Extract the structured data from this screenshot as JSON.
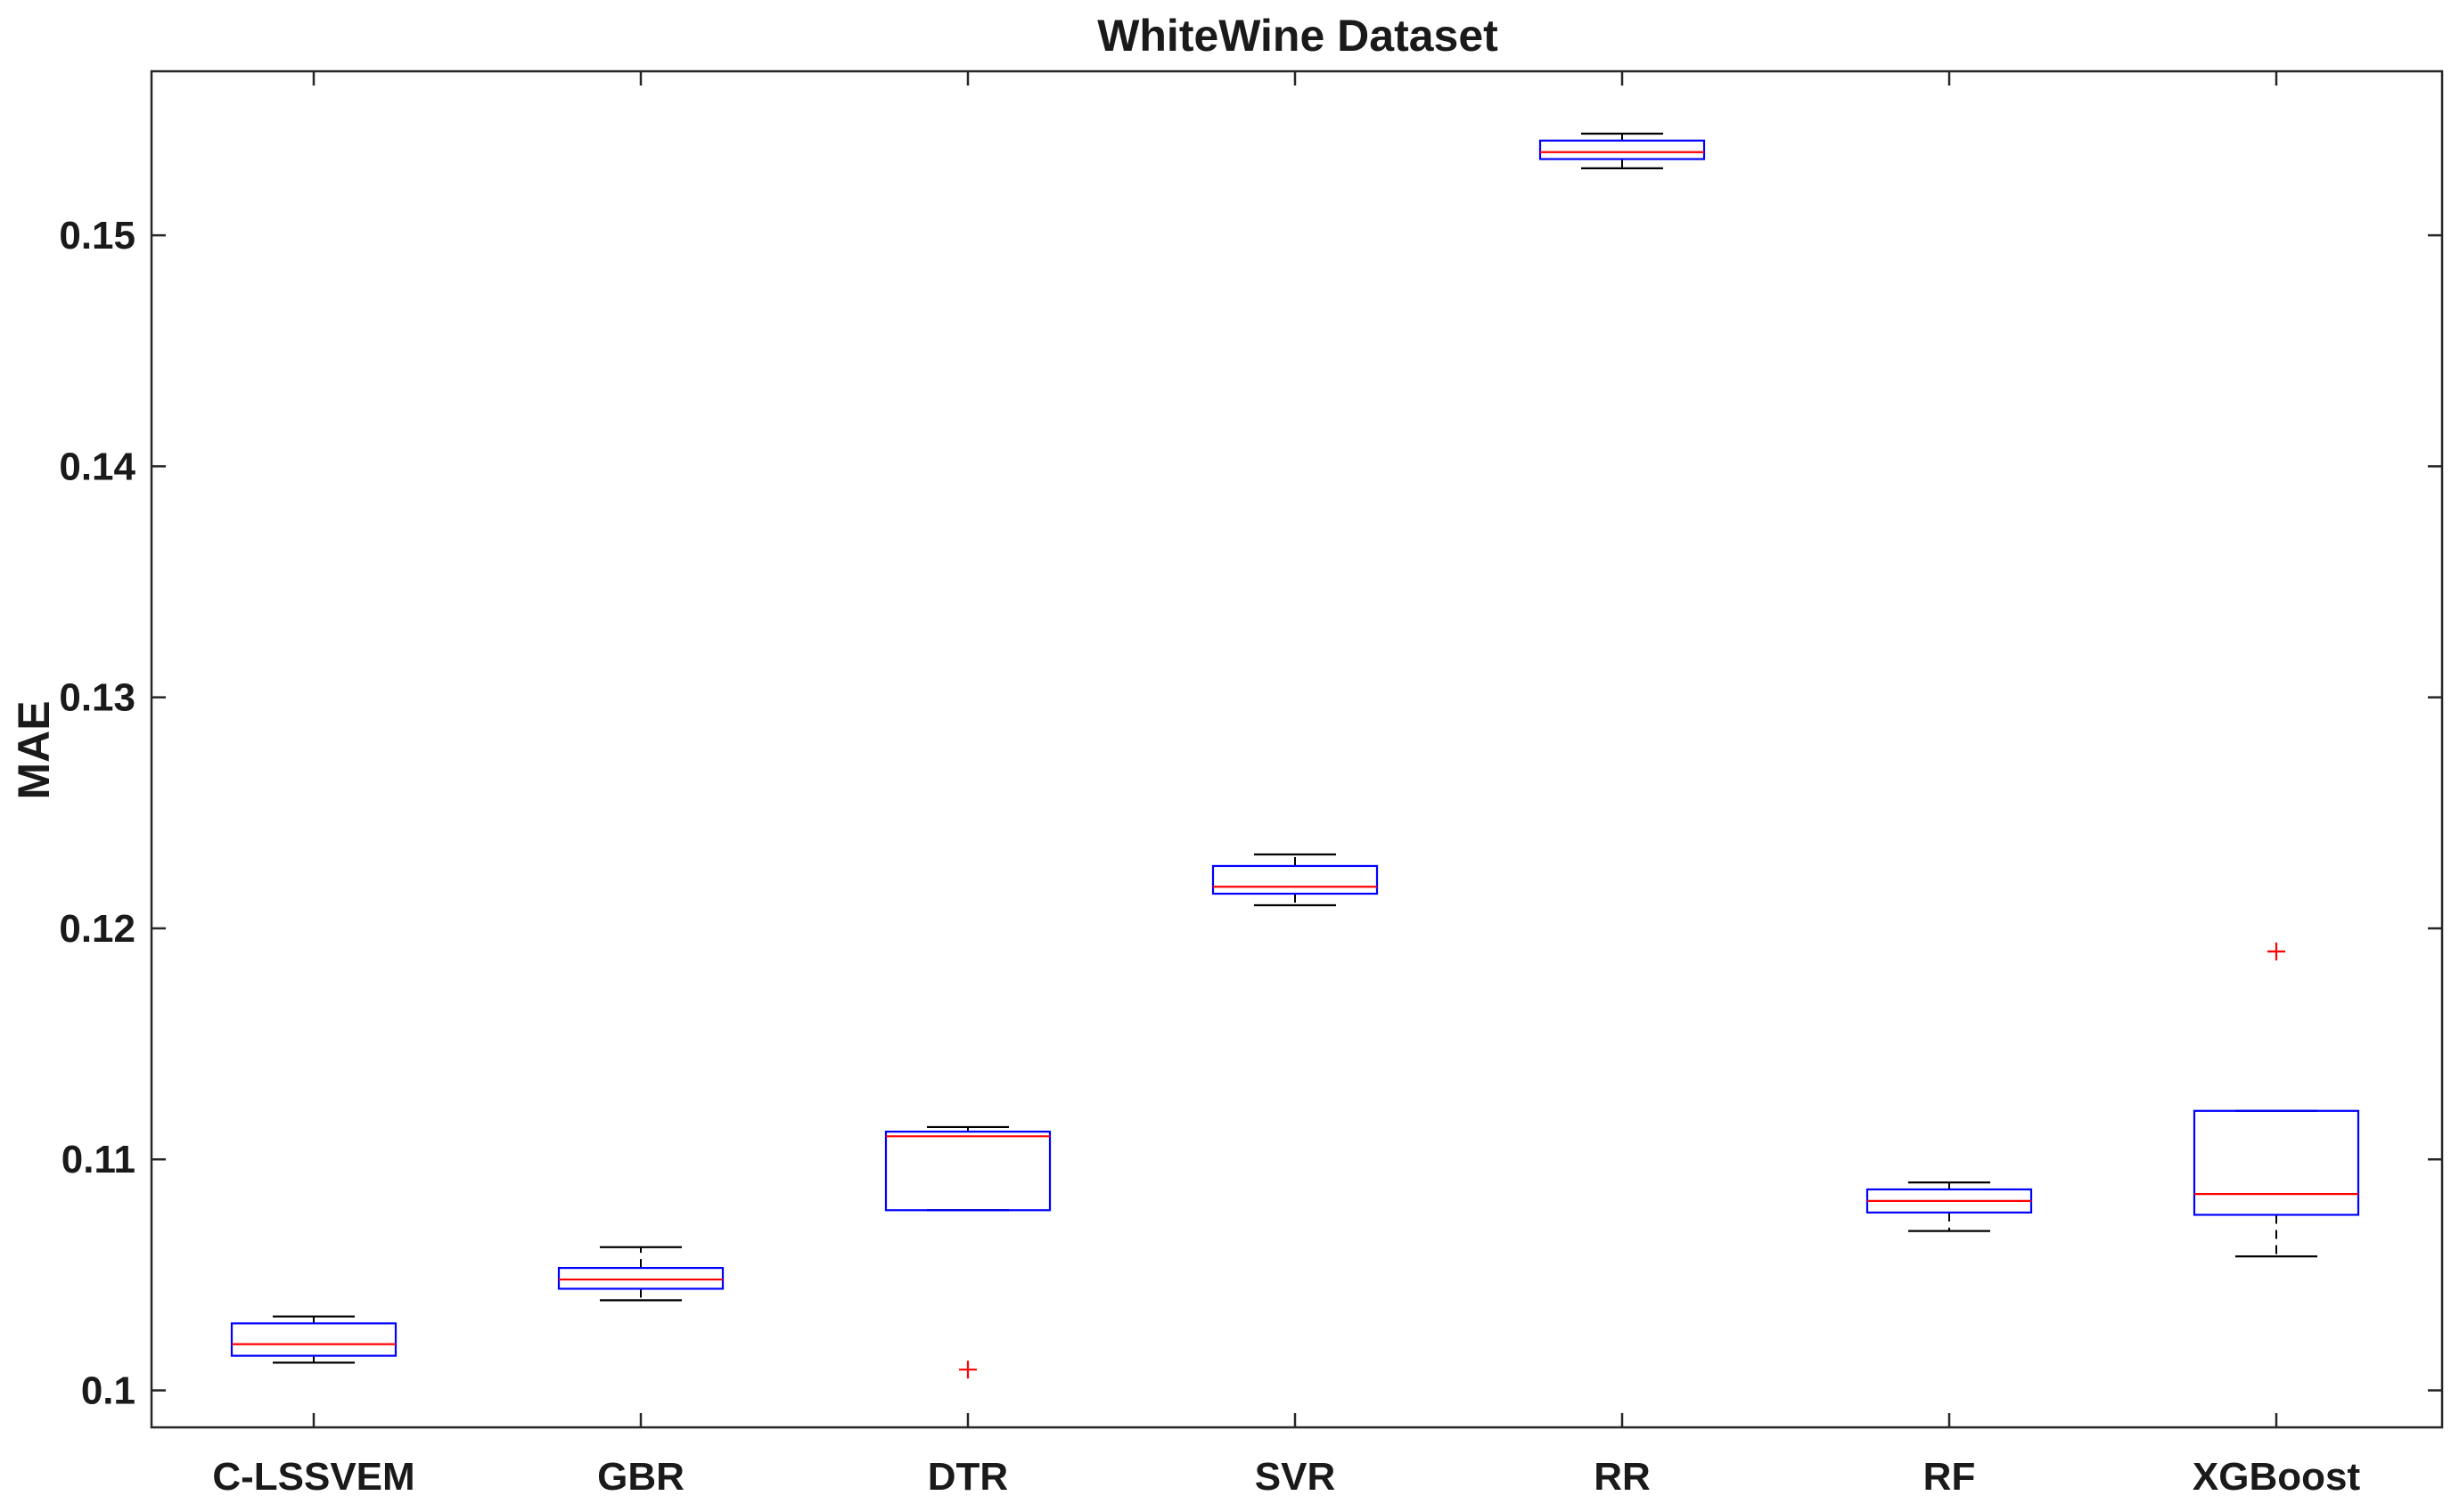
{
  "chart_data": {
    "type": "boxplot",
    "title": "WhiteWine Dataset",
    "xlabel": "",
    "ylabel": "MAE",
    "ylim": [
      0.0984,
      0.1571
    ],
    "yticks": [
      0.1,
      0.11,
      0.12,
      0.13,
      0.14,
      0.15
    ],
    "ytick_labels": [
      "0.1",
      "0.11",
      "0.12",
      "0.13",
      "0.14",
      "0.15"
    ],
    "categories": [
      "C-LSSVEM",
      "GBR",
      "DTR",
      "SVR",
      "RR",
      "RF",
      "XGBoost"
    ],
    "boxes": [
      {
        "whisker_low": 0.1012,
        "q1": 0.1015,
        "median": 0.102,
        "q3": 0.1029,
        "whisker_high": 0.1032,
        "outliers": []
      },
      {
        "whisker_low": 0.1039,
        "q1": 0.1044,
        "median": 0.1048,
        "q3": 0.1053,
        "whisker_high": 0.1062,
        "outliers": []
      },
      {
        "whisker_low": 0.1078,
        "q1": 0.1078,
        "median": 0.111,
        "q3": 0.1112,
        "whisker_high": 0.1114,
        "outliers": [
          0.1009
        ]
      },
      {
        "whisker_low": 0.121,
        "q1": 0.1215,
        "median": 0.1218,
        "q3": 0.1227,
        "whisker_high": 0.1232,
        "outliers": []
      },
      {
        "whisker_low": 0.1529,
        "q1": 0.1533,
        "median": 0.1536,
        "q3": 0.1541,
        "whisker_high": 0.1544,
        "outliers": []
      },
      {
        "whisker_low": 0.1069,
        "q1": 0.1077,
        "median": 0.1082,
        "q3": 0.1087,
        "whisker_high": 0.109,
        "outliers": []
      },
      {
        "whisker_low": 0.1058,
        "q1": 0.1076,
        "median": 0.1085,
        "q3": 0.1121,
        "whisker_high": 0.1121,
        "outliers": [
          0.119
        ]
      }
    ],
    "grid": false,
    "colors": {
      "box": "#0000ff",
      "median": "#ff0000",
      "whisker": "#000000",
      "outlier": "#ff0000",
      "axis": "#262626"
    }
  }
}
